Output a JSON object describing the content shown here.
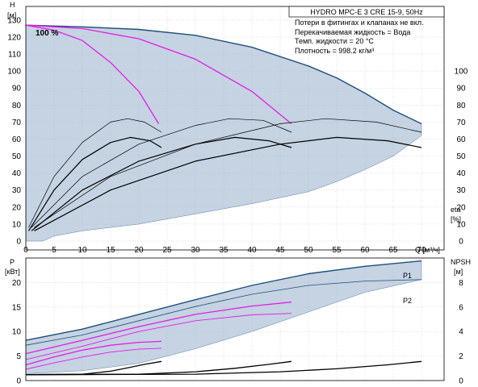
{
  "title": "HYDRO MPC-E 3 CRE 15-9, 50Hz",
  "notes": [
    "Потери в фитингах и клапанах не вкл.",
    "Перекачиваемая жидкость = Вода",
    "Темп. жидкости = 20 °C",
    "Плотность = 998.2 кг/м³"
  ],
  "colors": {
    "envelope": "#c5d3e3",
    "envelope_edge": "#5b7fa4",
    "curve_max": "#1f4e79",
    "speed": "#e41ce6",
    "eta": "#000000",
    "grid": "#b4b4b4"
  },
  "chart_data": [
    {
      "type": "line",
      "name": "upper",
      "axes": {
        "x": {
          "label": "Q [м³/ч]",
          "ticks": [
            0,
            5,
            10,
            15,
            20,
            25,
            30,
            35,
            40,
            45,
            50,
            55,
            60,
            65,
            70
          ],
          "lim": [
            0,
            74
          ]
        },
        "y_left": {
          "label": "H",
          "unit": "[м]",
          "ticks": [
            0,
            10,
            20,
            30,
            40,
            50,
            60,
            70,
            80,
            90,
            100,
            110,
            120,
            130
          ],
          "lim": [
            0,
            138
          ]
        },
        "y_right": {
          "label": "eta",
          "unit": "[%]",
          "ticks": [
            0,
            10,
            20,
            30,
            40,
            50,
            60,
            70,
            80,
            90,
            100
          ],
          "lim": [
            0,
            138
          ]
        }
      },
      "annotations": [
        {
          "text": "100 %",
          "x": 1,
          "y": 128
        }
      ],
      "envelope": {
        "upper": [
          [
            0,
            127
          ],
          [
            10,
            126
          ],
          [
            20,
            124.5
          ],
          [
            30,
            121
          ],
          [
            40,
            114
          ],
          [
            50,
            103
          ],
          [
            55,
            96
          ],
          [
            60,
            87
          ],
          [
            65,
            77
          ],
          [
            70,
            69
          ]
        ],
        "lower": [
          [
            70,
            62
          ],
          [
            65,
            50
          ],
          [
            60,
            42
          ],
          [
            55,
            35
          ],
          [
            50,
            29
          ],
          [
            40,
            22
          ],
          [
            30,
            16
          ],
          [
            20,
            10
          ],
          [
            10,
            6
          ],
          [
            5,
            3
          ],
          [
            3,
            0
          ],
          [
            0,
            0
          ]
        ]
      },
      "series": [
        {
          "role": "curve_max",
          "color": "#1f4e79",
          "width": 1.4,
          "points": [
            [
              0,
              127
            ],
            [
              10,
              126
            ],
            [
              20,
              124.5
            ],
            [
              30,
              121
            ],
            [
              40,
              114
            ],
            [
              50,
              103
            ],
            [
              55,
              96
            ],
            [
              60,
              87
            ],
            [
              65,
              77
            ],
            [
              70,
              69
            ]
          ]
        },
        {
          "role": "speed",
          "color": "#e41ce6",
          "width": 1.3,
          "points": [
            [
              0,
              127
            ],
            [
              5,
              124
            ],
            [
              10,
              118
            ],
            [
              15,
              105
            ],
            [
              20,
              88
            ],
            [
              23.5,
              69
            ]
          ]
        },
        {
          "role": "speed",
          "color": "#e41ce6",
          "width": 1.3,
          "points": [
            [
              0,
              127
            ],
            [
              10,
              125
            ],
            [
              20,
              119
            ],
            [
              30,
              107
            ],
            [
              40,
              88
            ],
            [
              47,
              69
            ]
          ]
        },
        {
          "role": "eta",
          "color": "#000000",
          "width": 0.7,
          "points": [
            [
              0.5,
              8
            ],
            [
              5,
              38
            ],
            [
              10,
              58
            ],
            [
              15,
              70
            ],
            [
              18,
              72
            ],
            [
              21,
              70
            ],
            [
              24,
              64
            ]
          ]
        },
        {
          "role": "eta",
          "color": "#000000",
          "width": 1.2,
          "points": [
            [
              0.5,
              6
            ],
            [
              5,
              30
            ],
            [
              10,
              48
            ],
            [
              15,
              58
            ],
            [
              18.5,
              61
            ],
            [
              22,
              59
            ],
            [
              24,
              55
            ]
          ]
        },
        {
          "role": "eta",
          "color": "#000000",
          "width": 0.7,
          "points": [
            [
              1,
              8
            ],
            [
              10,
              38
            ],
            [
              20,
              57
            ],
            [
              30,
              68
            ],
            [
              36,
              72
            ],
            [
              42,
              71
            ],
            [
              47,
              64
            ]
          ]
        },
        {
          "role": "eta",
          "color": "#000000",
          "width": 1.2,
          "points": [
            [
              1,
              6
            ],
            [
              10,
              30
            ],
            [
              20,
              47
            ],
            [
              30,
              57
            ],
            [
              37,
              61
            ],
            [
              43,
              59
            ],
            [
              47,
              55
            ]
          ]
        },
        {
          "role": "eta",
          "color": "#000000",
          "width": 0.7,
          "points": [
            [
              1.5,
              8
            ],
            [
              15,
              38
            ],
            [
              30,
              57
            ],
            [
              45,
              69
            ],
            [
              53,
              72
            ],
            [
              62,
              70
            ],
            [
              70,
              64
            ]
          ]
        },
        {
          "role": "eta",
          "color": "#000000",
          "width": 1.2,
          "points": [
            [
              1.5,
              6
            ],
            [
              15,
              30
            ],
            [
              30,
              47
            ],
            [
              45,
              57
            ],
            [
              55,
              61
            ],
            [
              64,
              59
            ],
            [
              70,
              55
            ]
          ]
        }
      ]
    },
    {
      "type": "line",
      "name": "lower",
      "axes": {
        "y_left": {
          "label": "P",
          "unit": "[кВт]",
          "ticks": [
            0,
            5,
            10,
            15,
            20
          ],
          "lim": [
            0,
            25
          ]
        },
        "y_right": {
          "label": "NPSH",
          "unit": "[м]",
          "ticks": [
            0,
            2,
            4,
            6,
            8
          ],
          "lim": [
            0,
            10
          ]
        }
      },
      "envelope": {
        "upper": [
          [
            0,
            8.2
          ],
          [
            10,
            10.5
          ],
          [
            20,
            13.5
          ],
          [
            30,
            16.5
          ],
          [
            40,
            19.4
          ],
          [
            50,
            21.8
          ],
          [
            60,
            23.3
          ],
          [
            70,
            24.4
          ]
        ],
        "lower": [
          [
            70,
            20.6
          ],
          [
            60,
            18
          ],
          [
            50,
            14
          ],
          [
            40,
            10
          ],
          [
            30,
            6.5
          ],
          [
            20,
            3.5
          ],
          [
            10,
            2
          ],
          [
            0,
            1.4
          ]
        ]
      },
      "series": [
        {
          "name": "P1",
          "color": "#1f4e79",
          "width": 1.4,
          "points": [
            [
              0,
              8.2
            ],
            [
              10,
              10.5
            ],
            [
              20,
              13.5
            ],
            [
              30,
              16.5
            ],
            [
              40,
              19.4
            ],
            [
              50,
              21.8
            ],
            [
              60,
              23.3
            ],
            [
              70,
              24.4
            ]
          ]
        },
        {
          "name": "P2",
          "color": "#1f4e79",
          "width": 0.8,
          "points": [
            [
              0,
              7.2
            ],
            [
              10,
              9.3
            ],
            [
              20,
              12.2
            ],
            [
              30,
              15.1
            ],
            [
              40,
              17.6
            ],
            [
              50,
              19.4
            ],
            [
              60,
              20.3
            ],
            [
              70,
              20.6
            ]
          ]
        },
        {
          "role": "speed",
          "color": "#e41ce6",
          "width": 1.3,
          "points": [
            [
              0,
              5.5
            ],
            [
              10,
              8.2
            ],
            [
              20,
              11
            ],
            [
              30,
              13.5
            ],
            [
              40,
              15.2
            ],
            [
              47,
              16
            ]
          ]
        },
        {
          "role": "speed",
          "color": "#e41ce6",
          "width": 0.9,
          "points": [
            [
              0,
              4.3
            ],
            [
              10,
              7
            ],
            [
              20,
              10
            ],
            [
              30,
              12.2
            ],
            [
              40,
              13.4
            ],
            [
              47,
              13.7
            ]
          ]
        },
        {
          "role": "speed",
          "color": "#e41ce6",
          "width": 1.3,
          "points": [
            [
              0,
              3.2
            ],
            [
              5,
              4.8
            ],
            [
              10,
              6.2
            ],
            [
              15,
              7.2
            ],
            [
              20,
              7.8
            ],
            [
              24,
              8
            ]
          ]
        },
        {
          "role": "speed",
          "color": "#e41ce6",
          "width": 0.9,
          "points": [
            [
              0,
              2.3
            ],
            [
              5,
              3.6
            ],
            [
              10,
              4.8
            ],
            [
              15,
              5.8
            ],
            [
              20,
              6.4
            ],
            [
              24,
              6.6
            ]
          ]
        },
        {
          "role": "npsh",
          "color": "#000000",
          "width": 1.3,
          "points": [
            [
              0,
              1.2
            ],
            [
              10,
              1.3
            ],
            [
              15,
              1.9
            ],
            [
              18,
              2.6
            ],
            [
              21,
              3.3
            ],
            [
              24,
              3.9
            ]
          ]
        },
        {
          "role": "npsh",
          "color": "#000000",
          "width": 1.3,
          "points": [
            [
              0,
              1.2
            ],
            [
              20,
              1.3
            ],
            [
              30,
              1.8
            ],
            [
              37,
              2.5
            ],
            [
              43,
              3.3
            ],
            [
              47,
              3.9
            ]
          ]
        },
        {
          "role": "npsh",
          "color": "#000000",
          "width": 1.3,
          "points": [
            [
              0,
              1.2
            ],
            [
              30,
              1.3
            ],
            [
              45,
              1.8
            ],
            [
              55,
              2.4
            ],
            [
              64,
              3.2
            ],
            [
              70,
              3.9
            ]
          ]
        }
      ]
    }
  ]
}
